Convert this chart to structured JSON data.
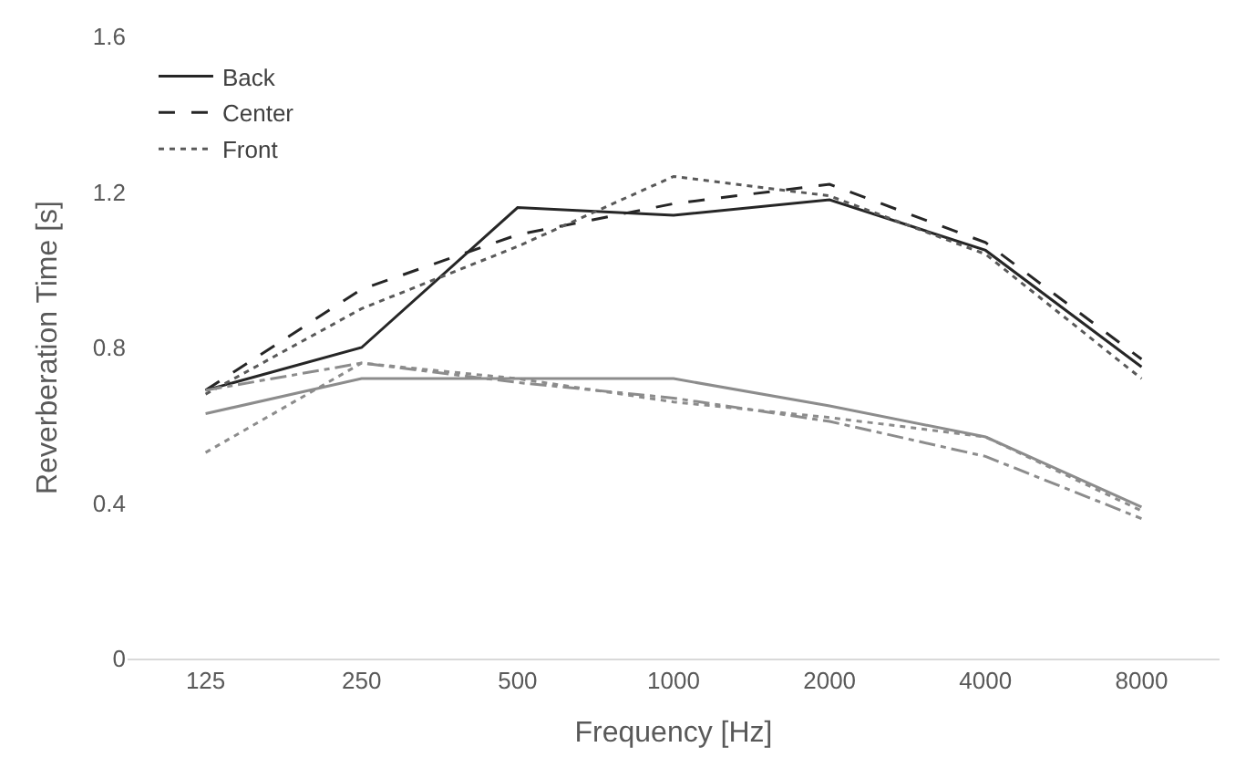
{
  "chart_data": {
    "type": "line",
    "xlabel": "Frequency [Hz]",
    "ylabel": "Reverberation Time [s]",
    "categories": [
      "125",
      "250",
      "500",
      "1000",
      "2000",
      "4000",
      "8000"
    ],
    "ylim": [
      0,
      1.6
    ],
    "yticks": [
      0,
      0.4,
      0.8,
      1.2,
      1.6
    ],
    "legend": "top left",
    "marker": "none",
    "series": [
      {
        "name": "Back",
        "color": "#262626",
        "line_style": "solid",
        "values": [
          0.69,
          0.8,
          1.16,
          1.14,
          1.18,
          1.05,
          0.75
        ]
      },
      {
        "name": "Center",
        "color": "#262626",
        "line_style": "dashed",
        "values": [
          0.69,
          0.95,
          1.09,
          1.17,
          1.22,
          1.07,
          0.77
        ]
      },
      {
        "name": "Front",
        "color": "#595959",
        "line_style": "dotted",
        "values": [
          0.68,
          0.9,
          1.06,
          1.24,
          1.19,
          1.04,
          0.72
        ]
      },
      {
        "color": "#8c8c8c",
        "line_style": "solid",
        "values": [
          0.63,
          0.72,
          0.72,
          0.72,
          0.65,
          0.57,
          0.39
        ]
      },
      {
        "color": "#8c8c8c",
        "line_style": "dashdot",
        "values": [
          0.69,
          0.76,
          0.71,
          0.67,
          0.61,
          0.52,
          0.36
        ]
      },
      {
        "color": "#8c8c8c",
        "line_style": "dotted",
        "values": [
          0.53,
          0.76,
          0.72,
          0.66,
          0.62,
          0.57,
          0.38
        ]
      }
    ]
  }
}
